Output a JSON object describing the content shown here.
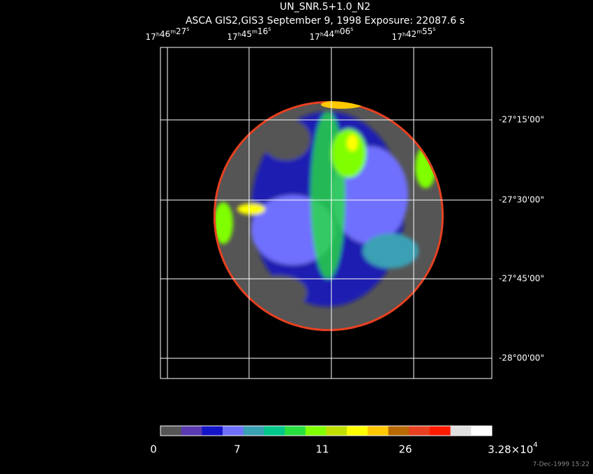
{
  "header": {
    "title": "UN_SNR.5+1.0_N2",
    "subtitle": "ASCA GIS2,GIS3 September 9, 1998 Exposure: 22087.6 s"
  },
  "ra_units": [
    "h",
    "m",
    "s"
  ],
  "ra_labels": [
    {
      "hours": "17",
      "minutes": "46",
      "seconds": "27"
    },
    {
      "hours": "17",
      "minutes": "45",
      "seconds": "16"
    },
    {
      "hours": "17",
      "minutes": "44",
      "seconds": "06"
    },
    {
      "hours": "17",
      "minutes": "42",
      "seconds": "55"
    }
  ],
  "dec_labels": [
    "-27°15'00\"",
    "-27°30'00\"",
    "-27°45'00\"",
    "-28°00'00\""
  ],
  "colorbar": {
    "colors": [
      "#555555",
      "#5a3ab0",
      "#1414c8",
      "#7070ff",
      "#3aa0b4",
      "#00c88c",
      "#28e040",
      "#80ff00",
      "#c0e000",
      "#ffff00",
      "#ffc800",
      "#b86a00",
      "#e84020",
      "#ff1a00",
      "#e0e0e0",
      "#ffffff"
    ],
    "labels": [
      "0",
      "7",
      "11",
      "26"
    ],
    "max_label": {
      "mantissa": "3.28×10",
      "exponent": "4"
    }
  },
  "footer": "7-Dec-1999 15:22"
}
